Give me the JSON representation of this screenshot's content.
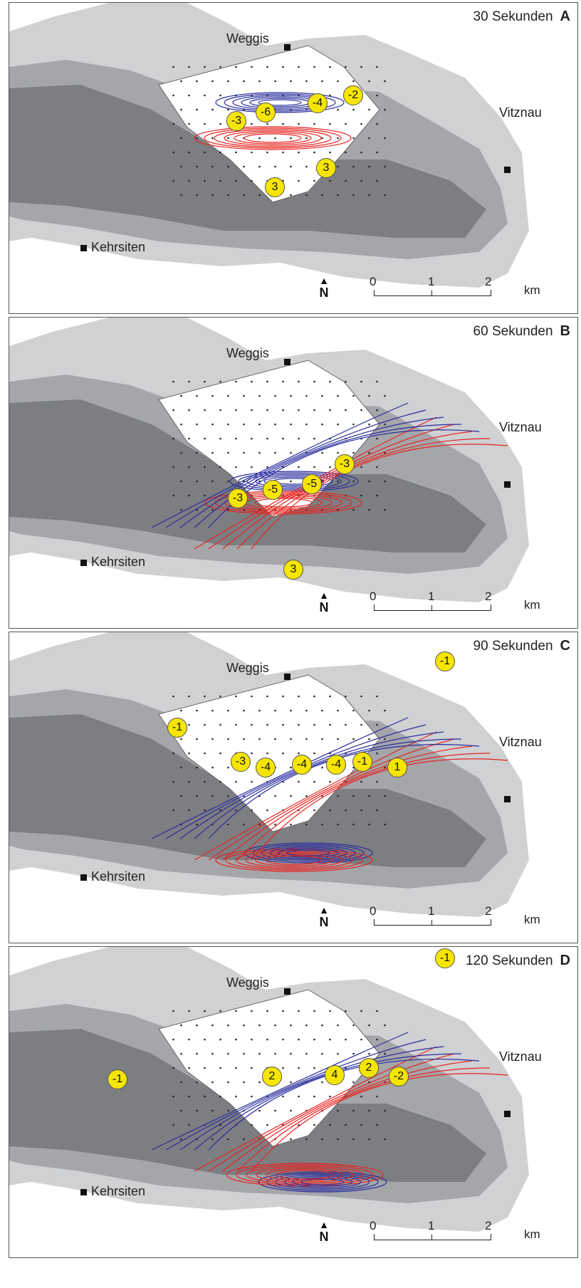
{
  "panels": [
    {
      "time": "30 Sekunden",
      "letter": "A",
      "badges": [
        "-3",
        "-6",
        "-4",
        "-2",
        "3",
        "3"
      ]
    },
    {
      "time": "60 Sekunden",
      "letter": "B",
      "badges": [
        "-3",
        "-5",
        "-5",
        "-3",
        "3"
      ]
    },
    {
      "time": "90 Sekunden",
      "letter": "C",
      "badges": [
        "-1",
        "-1",
        "-3",
        "-4",
        "-4",
        "-4",
        "-1",
        "1"
      ]
    },
    {
      "time": "120 Sekunden",
      "letter": "D",
      "badges": [
        "-1",
        "-1",
        "2",
        "4",
        "2",
        "-2"
      ]
    }
  ],
  "towns": {
    "weggis": "Weggis",
    "vitznau": "Vitznau",
    "kehrsiten": "Kehrsiten"
  },
  "north_label": "N",
  "scale": {
    "t0": "0",
    "t1": "1",
    "t2": "2",
    "unit": "km"
  },
  "colors": {
    "lake_shallow": "#cfd1d3",
    "lake_mid": "#a4a6a9",
    "lake_deep": "#7c7e82",
    "positive": "#e8231f",
    "negative": "#2a2d9e",
    "badge": "#f6e500"
  }
}
